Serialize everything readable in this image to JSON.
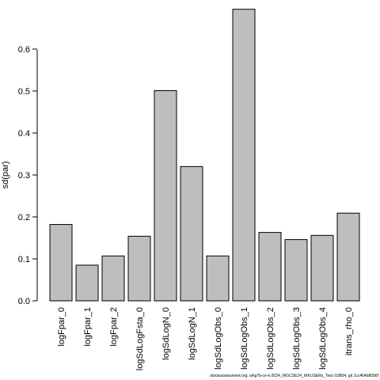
{
  "chart_data": {
    "type": "bar",
    "categories": [
      "logFpar_0",
      "logFpar_1",
      "logFpar_2",
      "logSdLogFsta_0",
      "logSdLogN_0",
      "logSdLogN_1",
      "logSdLogObs_0",
      "logSdLogObs_1",
      "logSdLogObs_2",
      "logSdLogObs_3",
      "logSdLogObs_4",
      "itrans_rho_0"
    ],
    "values": [
      0.182,
      0.085,
      0.107,
      0.154,
      0.501,
      0.32,
      0.107,
      0.695,
      0.163,
      0.146,
      0.156,
      0.209
    ],
    "ylabel": "sd(par)",
    "xlabel": "",
    "ylim": [
      0,
      0.7
    ],
    "yticks": [
      "0.0",
      "0.1",
      "0.2",
      "0.3",
      "0.4",
      "0.5",
      "0.6"
    ],
    "grid": false,
    "colors": {
      "bar_fill": "#bebebe",
      "bar_stroke": "#000000"
    }
  },
  "footnote": "stockassessment.org, whg7b-ce-k-2024_WGCSE24_WKUSERs_Test r19804, git 1cc464b8096f"
}
